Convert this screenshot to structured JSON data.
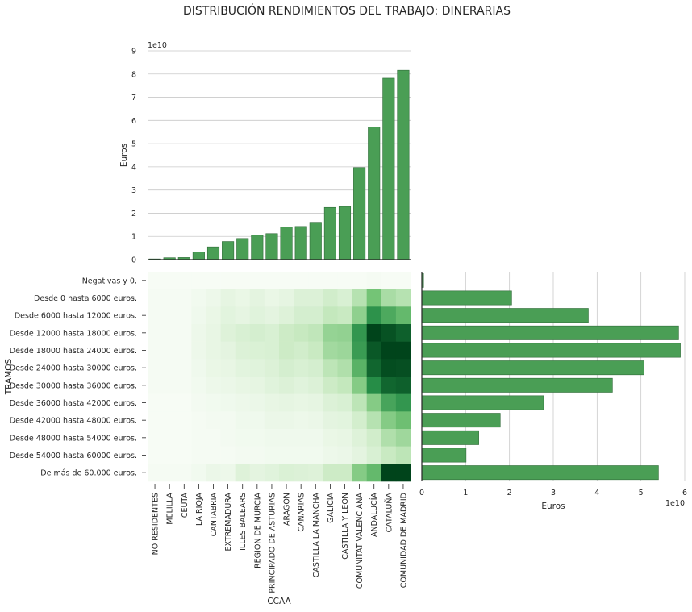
{
  "title": "DISTRIBUCIÓN RENDIMIENTOS DEL TRABAJO: DINERARIAS",
  "colors": {
    "bar": "#4a9e55",
    "bar_edge": "#2f6b38",
    "heatmap_low": "#f7fcf5",
    "heatmap_high": "#00441b"
  },
  "chart_data": [
    {
      "id": "top",
      "type": "bar",
      "ylabel": "Euros",
      "xlabel": "",
      "exponent_label": "1e10",
      "ylim": [
        0,
        9
      ],
      "yticks": [
        "0",
        "1",
        "2",
        "3",
        "4",
        "5",
        "6",
        "7",
        "8",
        "9"
      ],
      "grid": "horizontal",
      "categories": [
        "NO RESIDENTES",
        "MELILLA",
        "CEUTA",
        "LA RIOJA",
        "CANTABRIA",
        "EXTREMADURA",
        "ILLES BALEARS",
        "REGION DE MURCIA",
        "PRINCIPADO DE ASTURIAS",
        "ARAGON",
        "CANARIAS",
        "CASTILLA LA MANCHA",
        "GALICIA",
        "CASTILLA Y LEON",
        "COMUNITAT VALENCIANA",
        "ANDALUCÍA",
        "CATALUÑA",
        "COMUNIDAD DE MADRID"
      ],
      "values": [
        0.03,
        0.08,
        0.09,
        0.33,
        0.55,
        0.78,
        0.91,
        1.05,
        1.12,
        1.4,
        1.43,
        1.61,
        2.25,
        2.29,
        3.97,
        5.72,
        7.82,
        8.16
      ]
    },
    {
      "id": "heatmap",
      "type": "heatmap",
      "xlabel": "CCAA",
      "ylabel": "TRAMOS",
      "x": [
        "NO RESIDENTES",
        "MELILLA",
        "CEUTA",
        "LA RIOJA",
        "CANTABRIA",
        "EXTREMADURA",
        "ILLES BALEARS",
        "REGION DE MURCIA",
        "PRINCIPADO DE ASTURIAS",
        "ARAGON",
        "CANARIAS",
        "CASTILLA LA MANCHA",
        "GALICIA",
        "CASTILLA Y LEON",
        "COMUNITAT VALENCIANA",
        "ANDALUCÍA",
        "CATALUÑA",
        "COMUNIDAD DE MADRID"
      ],
      "y": [
        "Negativas y 0.",
        "Desde 0 hasta 6000 euros.",
        "Desde 6000 hasta 12000 euros.",
        "Desde 12000 hasta 18000 euros.",
        "Desde 18000 hasta 24000 euros.",
        "Desde 24000 hasta 30000 euros.",
        "Desde 30000 hasta 36000 euros.",
        "Desde 36000 hasta 42000 euros.",
        "Desde 42000 hasta 48000 euros.",
        "Desde 48000 hasta 54000 euros.",
        "Desde 54000 hasta 60000 euros.",
        "De más de 60.000 euros."
      ],
      "values": [
        [
          0.0,
          0.0,
          0.0,
          0.0,
          0.0,
          0.0,
          0.0,
          0.0,
          0.0,
          0.0,
          0.0,
          0.0,
          0.0,
          0.0,
          0.0,
          0.01,
          0.0,
          0.0
        ],
        [
          0.01,
          0.01,
          0.01,
          0.03,
          0.05,
          0.09,
          0.07,
          0.1,
          0.07,
          0.09,
          0.14,
          0.14,
          0.2,
          0.16,
          0.3,
          0.5,
          0.34,
          0.3
        ],
        [
          0.01,
          0.01,
          0.01,
          0.04,
          0.07,
          0.11,
          0.09,
          0.12,
          0.1,
          0.13,
          0.18,
          0.18,
          0.26,
          0.24,
          0.42,
          0.72,
          0.62,
          0.55
        ],
        [
          0.01,
          0.01,
          0.01,
          0.05,
          0.08,
          0.13,
          0.16,
          0.18,
          0.16,
          0.22,
          0.25,
          0.27,
          0.4,
          0.41,
          0.7,
          1.0,
          0.95,
          0.9
        ],
        [
          0.01,
          0.01,
          0.01,
          0.05,
          0.08,
          0.1,
          0.14,
          0.15,
          0.16,
          0.22,
          0.2,
          0.24,
          0.36,
          0.38,
          0.68,
          0.93,
          1.0,
          1.0
        ],
        [
          0.01,
          0.01,
          0.01,
          0.04,
          0.07,
          0.08,
          0.11,
          0.12,
          0.14,
          0.18,
          0.16,
          0.18,
          0.28,
          0.32,
          0.58,
          0.88,
          0.97,
          0.96
        ],
        [
          0.01,
          0.01,
          0.01,
          0.03,
          0.05,
          0.06,
          0.08,
          0.09,
          0.12,
          0.14,
          0.12,
          0.14,
          0.22,
          0.26,
          0.45,
          0.74,
          0.88,
          0.9
        ],
        [
          0.0,
          0.0,
          0.0,
          0.02,
          0.03,
          0.04,
          0.05,
          0.06,
          0.08,
          0.09,
          0.08,
          0.09,
          0.14,
          0.16,
          0.28,
          0.45,
          0.64,
          0.7
        ],
        [
          0.0,
          0.0,
          0.0,
          0.01,
          0.02,
          0.02,
          0.04,
          0.04,
          0.06,
          0.06,
          0.05,
          0.06,
          0.1,
          0.11,
          0.19,
          0.3,
          0.45,
          0.52
        ],
        [
          0.0,
          0.0,
          0.0,
          0.01,
          0.01,
          0.02,
          0.03,
          0.03,
          0.04,
          0.04,
          0.04,
          0.04,
          0.07,
          0.08,
          0.13,
          0.2,
          0.32,
          0.37
        ],
        [
          0.0,
          0.0,
          0.0,
          0.01,
          0.01,
          0.01,
          0.02,
          0.02,
          0.03,
          0.03,
          0.03,
          0.03,
          0.05,
          0.06,
          0.1,
          0.16,
          0.24,
          0.28
        ],
        [
          0.01,
          0.01,
          0.01,
          0.03,
          0.06,
          0.05,
          0.13,
          0.1,
          0.12,
          0.15,
          0.14,
          0.13,
          0.22,
          0.22,
          0.45,
          0.55,
          1.0,
          1.0
        ]
      ]
    },
    {
      "id": "right",
      "type": "bar",
      "orientation": "horizontal",
      "xlabel": "Euros",
      "exponent_label": "1e10",
      "xlim": [
        0,
        6
      ],
      "xticks": [
        "0",
        "1",
        "2",
        "3",
        "4",
        "5",
        "6"
      ],
      "grid": "vertical",
      "categories": [
        "Negativas y 0.",
        "Desde 0 hasta 6000 euros.",
        "Desde 6000 hasta 12000 euros.",
        "Desde 12000 hasta 18000 euros.",
        "Desde 18000 hasta 24000 euros.",
        "Desde 24000 hasta 30000 euros.",
        "Desde 30000 hasta 36000 euros.",
        "Desde 36000 hasta 42000 euros.",
        "Desde 42000 hasta 48000 euros.",
        "Desde 48000 hasta 54000 euros.",
        "Desde 54000 hasta 60000 euros.",
        "De más de 60.000 euros."
      ],
      "values": [
        0.04,
        2.05,
        3.8,
        5.86,
        5.9,
        5.07,
        4.35,
        2.78,
        1.79,
        1.3,
        1.01,
        5.4
      ]
    }
  ]
}
